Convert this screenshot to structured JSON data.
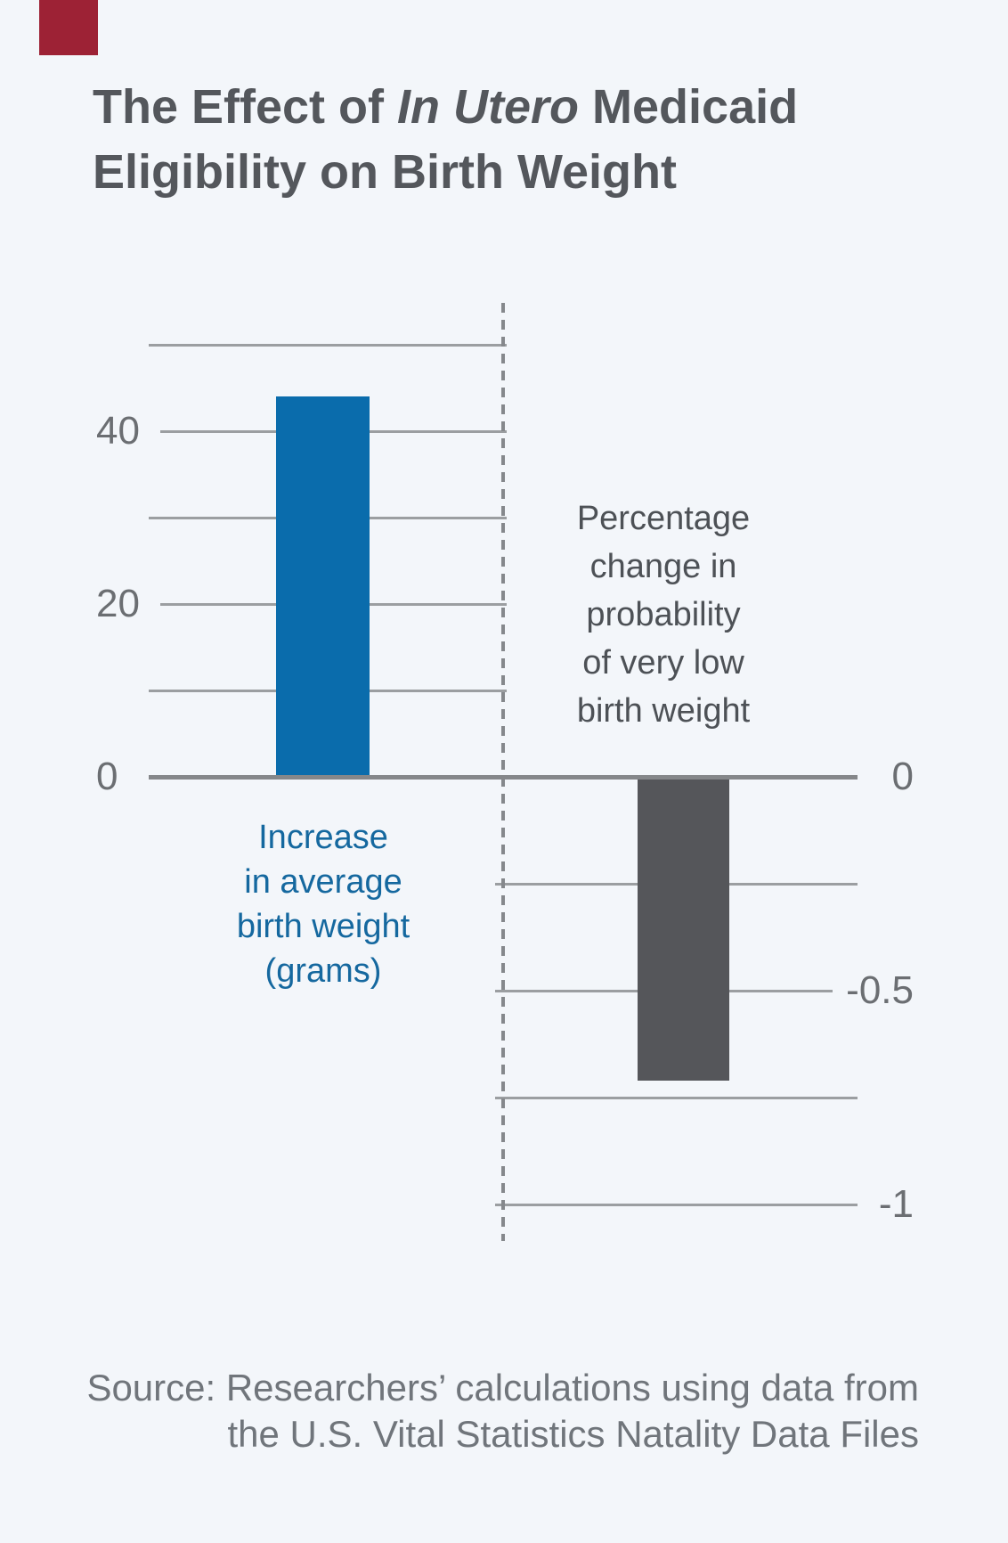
{
  "colors": {
    "background": "#f3f6fa",
    "brand_red_tab": "#9d2235",
    "title_text": "#54575c",
    "axis_label_text": "#6b6e72",
    "gridline": "#9b9ea1",
    "zero_axis_line": "#85878a",
    "dashed_divider": "#85888c",
    "bar_blue": "#0a6cac",
    "bar_dark_gray": "#55565a",
    "left_label_blue": "#15689f",
    "right_label_gray": "#4d5156",
    "source_text": "#70757b"
  },
  "title": {
    "line1_pre": "The Effect of ",
    "line1_italic": "In Utero",
    "line1_post": " Medicaid",
    "line2": "Eligibility on Birth Weight"
  },
  "chart_data": {
    "type": "bar",
    "title": "The Effect of In Utero Medicaid Eligibility on Birth Weight",
    "grid": true,
    "legend": false,
    "series": [
      {
        "name": "Increase in average birth weight (grams)",
        "axis": "left",
        "value": 44
      },
      {
        "name": "Percentage change in probability of very low birth weight",
        "axis": "right",
        "value": -0.71
      }
    ],
    "left_axis": {
      "ticks": [
        50,
        40,
        30,
        20,
        10,
        0
      ],
      "tick_labels": [
        "",
        "40",
        "",
        "20",
        "",
        "0"
      ],
      "range": [
        0,
        50
      ]
    },
    "right_axis": {
      "ticks": [
        0,
        -0.25,
        -0.5,
        -0.75,
        -1
      ],
      "tick_labels": [
        "0",
        "",
        "-0.5",
        "",
        "-1"
      ],
      "range": [
        -1,
        0
      ]
    }
  },
  "labels": {
    "left_bar": {
      "lines": [
        "Increase",
        "in average",
        "birth weight",
        "(grams)"
      ]
    },
    "right_bar": {
      "lines": [
        "Percentage",
        "change in",
        "probability",
        "of very low",
        "birth weight"
      ]
    }
  },
  "source": {
    "line1": "Source: Researchers’ calculations using data from",
    "line2": "the U.S. Vital Statistics Natality Data Files"
  }
}
